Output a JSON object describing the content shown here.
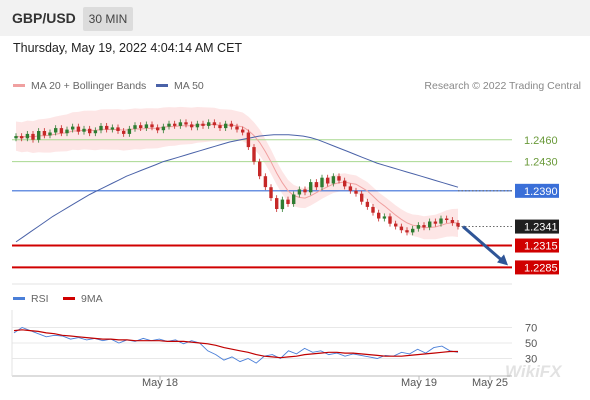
{
  "header": {
    "pair": "GBP/USD",
    "timeframe": "30 MIN"
  },
  "datetime": "Thursday, May 19, 2022 4:04:14 AM CET",
  "legend": {
    "ma20_label": "MA 20 + Bollinger Bands",
    "ma50_label": "MA 50",
    "credit": "Research © 2022 Trading Central"
  },
  "rsi_legend": {
    "rsi_label": "RSI",
    "ma_label": "9MA"
  },
  "colors": {
    "bollinger_fill": "#fde3e3",
    "ma20": "#f0a0a0",
    "ma50": "#4a62a8",
    "green_level": "#a8d890",
    "blue_level": "#3a6fd8",
    "red_level": "#d00000",
    "candle_green": "#2e7d32",
    "candle_red": "#c62828",
    "arrow": "#2f5597"
  },
  "chart_data": [
    {
      "type": "candlestick",
      "title": "GBP/USD",
      "timeframe": "30 MIN",
      "x_ticks": [
        "May 18",
        "May 19",
        "May 25"
      ],
      "price_levels": [
        {
          "value": 1.246,
          "label": "1.2460",
          "kind": "resistance"
        },
        {
          "value": 1.243,
          "label": "1.2430",
          "kind": "resistance"
        },
        {
          "value": 1.239,
          "label": "1.2390",
          "kind": "pivot"
        },
        {
          "value": 1.2341,
          "label": "1.2341",
          "kind": "last-price"
        },
        {
          "value": 1.2315,
          "label": "1.2315",
          "kind": "support"
        },
        {
          "value": 1.2285,
          "label": "1.2285",
          "kind": "support"
        }
      ],
      "ylim": [
        1.2265,
        1.252
      ],
      "closes": [
        1.2465,
        1.2462,
        1.2468,
        1.246,
        1.2472,
        1.2466,
        1.247,
        1.2476,
        1.2469,
        1.2474,
        1.2478,
        1.2471,
        1.2475,
        1.2469,
        1.2473,
        1.2479,
        1.2474,
        1.2477,
        1.2472,
        1.2468,
        1.2475,
        1.248,
        1.2476,
        1.2481,
        1.2477,
        1.2473,
        1.2478,
        1.2482,
        1.2479,
        1.2484,
        1.2481,
        1.2477,
        1.2482,
        1.2479,
        1.2484,
        1.248,
        1.2476,
        1.2482,
        1.2478,
        1.2474,
        1.247,
        1.245,
        1.243,
        1.241,
        1.2395,
        1.238,
        1.2365,
        1.2378,
        1.2372,
        1.2385,
        1.2392,
        1.2388,
        1.2402,
        1.2395,
        1.2408,
        1.24,
        1.241,
        1.2404,
        1.2396,
        1.239,
        1.2386,
        1.2375,
        1.2368,
        1.236,
        1.2352,
        1.2355,
        1.2345,
        1.2341,
        1.2336,
        1.2333,
        1.2338,
        1.2343,
        1.234,
        1.2348,
        1.2345,
        1.2352,
        1.235,
        1.2346,
        1.2341
      ],
      "ma50": [
        1.232,
        1.2327,
        1.2334,
        1.2341,
        1.2348,
        1.2355,
        1.2361,
        1.2367,
        1.2373,
        1.2379,
        1.2385,
        1.239,
        1.2395,
        1.24,
        1.2405,
        1.241,
        1.2414,
        1.2418,
        1.2422,
        1.2426,
        1.243,
        1.2433,
        1.2436,
        1.2439,
        1.2442,
        1.2445,
        1.2448,
        1.2451,
        1.2454,
        1.2457,
        1.2459,
        1.2461,
        1.2463,
        1.2465,
        1.2466,
        1.2467,
        1.2467,
        1.2467,
        1.2466,
        1.2465,
        1.2463,
        1.246,
        1.2456,
        1.2452,
        1.2448,
        1.2444,
        1.244,
        1.2436,
        1.2432,
        1.2428,
        1.2425,
        1.2422,
        1.2419,
        1.2416,
        1.2413,
        1.241,
        1.2407,
        1.2404,
        1.2401,
        1.2398,
        1.2395
      ],
      "forecast": {
        "from": 1.2341,
        "to": 1.2285
      }
    },
    {
      "type": "line",
      "title": "RSI",
      "y_ticks": [
        "70",
        "50",
        "30"
      ],
      "ylim": [
        10,
        90
      ],
      "series": [
        {
          "name": "RSI",
          "values": [
            63,
            70,
            66,
            62,
            58,
            60,
            59,
            55,
            57,
            54,
            56,
            53,
            55,
            50,
            54,
            52,
            56,
            53,
            55,
            52,
            54,
            49,
            53,
            50,
            40,
            35,
            28,
            32,
            26,
            30,
            24,
            33,
            35,
            30,
            40,
            36,
            43,
            38,
            40,
            35,
            37,
            33,
            36,
            34,
            32,
            30,
            34,
            33,
            38,
            36,
            42,
            37,
            44,
            46,
            40,
            38
          ]
        },
        {
          "name": "9MA",
          "values": [
            66,
            67,
            66,
            65,
            63,
            62,
            60,
            59,
            58,
            57,
            56,
            55,
            55,
            54,
            54,
            53,
            53,
            53,
            53,
            52,
            52,
            52,
            51,
            50,
            49,
            47,
            44,
            42,
            40,
            38,
            35,
            33,
            32,
            31,
            32,
            33,
            35,
            36,
            37,
            38,
            38,
            37,
            37,
            36,
            35,
            34,
            33,
            33,
            33,
            34,
            35,
            36,
            37,
            38,
            39,
            39
          ]
        }
      ]
    }
  ]
}
